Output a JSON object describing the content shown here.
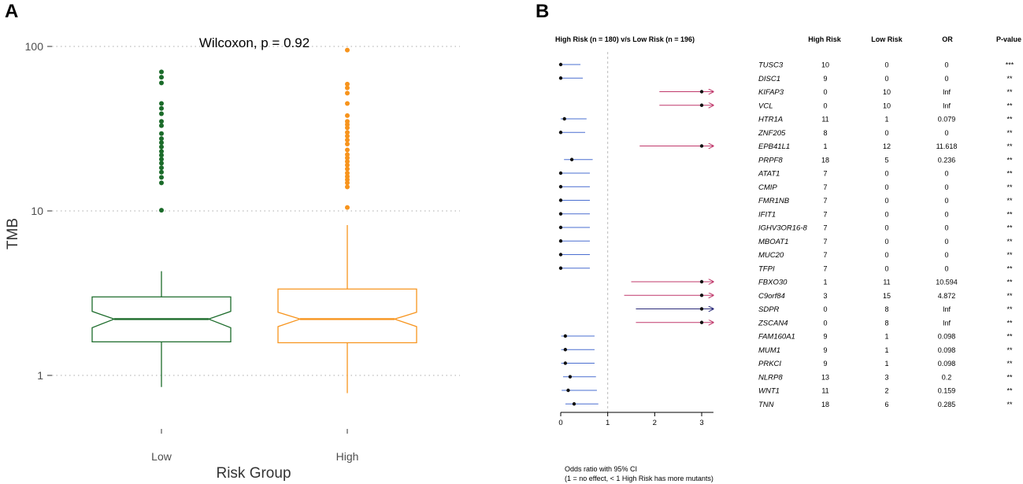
{
  "chart_data": [
    {
      "panel": "A",
      "type": "boxplot",
      "title": "Wilcoxon, p = 0.92",
      "xlabel": "Risk Group",
      "ylabel": "TMB",
      "yscale": "log10",
      "ylim": [
        0.7,
        110
      ],
      "yticks": [
        1,
        10,
        100
      ],
      "ytick_labels": [
        "1",
        "10",
        "100"
      ],
      "categories": [
        "Low",
        "High"
      ],
      "colors": [
        "#1b6b2a",
        "#f7941d"
      ],
      "boxes": [
        {
          "name": "Low",
          "lower_whisker": 0.85,
          "q1": 1.6,
          "median": 2.2,
          "q3": 3.0,
          "upper_whisker": 4.3,
          "notch_low": 1.95,
          "notch_high": 2.45,
          "outliers": [
            10.1,
            14.8,
            16.0,
            17.2,
            18.3,
            19.5,
            20.6,
            21.8,
            23.0,
            24.5,
            26.0,
            27.5,
            29.5,
            33.0,
            35.0,
            39.0,
            42.0,
            45.0,
            60.0,
            65.0,
            70.0
          ]
        },
        {
          "name": "High",
          "lower_whisker": 0.78,
          "q1": 1.58,
          "median": 2.2,
          "q3": 3.35,
          "upper_whisker": 8.2,
          "notch_low": 1.98,
          "notch_high": 2.42,
          "outliers": [
            10.5,
            14.0,
            14.8,
            15.5,
            16.2,
            17.0,
            18.0,
            19.0,
            20.0,
            21.0,
            22.0,
            23.5,
            25.5,
            27.0,
            28.5,
            30.0,
            32.0,
            33.5,
            35.0,
            38.0,
            45.0,
            52.0,
            56.0,
            59.0,
            95.0
          ]
        }
      ]
    },
    {
      "panel": "B",
      "type": "forest",
      "title": "High Risk (n = 180) v/s Low Risk (n = 196)",
      "columns": [
        "High Risk",
        "Low Risk",
        "OR",
        "P-value"
      ],
      "xlim": [
        0,
        3
      ],
      "xticks": [
        0,
        1,
        2,
        3
      ],
      "ref_line": 1,
      "footnote_line1": "Odds ratio with 95% CI",
      "footnote_line2": "(1 = no effect, < 1 High Risk has more mutants)",
      "colors": {
        "low_ci": "#4a6fd0",
        "high_ci": "#c0396b",
        "dark_ci": "#2b2b7a",
        "point": "#111111",
        "ref": "#bbbbbb"
      },
      "rows": [
        {
          "gene": "TUSC3",
          "high": "10",
          "low": "0",
          "or": "0",
          "p": "***",
          "est": 0,
          "lo": 0,
          "hi": 0.42,
          "color": "low_ci",
          "arrow": false
        },
        {
          "gene": "DISC1",
          "high": "9",
          "low": "0",
          "or": "0",
          "p": "**",
          "est": 0,
          "lo": 0,
          "hi": 0.47,
          "color": "low_ci",
          "arrow": false
        },
        {
          "gene": "KIFAP3",
          "high": "0",
          "low": "10",
          "or": "Inf",
          "p": "**",
          "est": 3,
          "lo": 2.1,
          "hi": 3.25,
          "color": "high_ci",
          "arrow": true
        },
        {
          "gene": "VCL",
          "high": "0",
          "low": "10",
          "or": "Inf",
          "p": "**",
          "est": 3,
          "lo": 2.1,
          "hi": 3.25,
          "color": "high_ci",
          "arrow": true
        },
        {
          "gene": "HTR1A",
          "high": "11",
          "low": "1",
          "or": "0.079",
          "p": "**",
          "est": 0.079,
          "lo": 0.0,
          "hi": 0.55,
          "color": "low_ci",
          "arrow": false
        },
        {
          "gene": "ZNF205",
          "high": "8",
          "low": "0",
          "or": "0",
          "p": "**",
          "est": 0,
          "lo": 0,
          "hi": 0.52,
          "color": "low_ci",
          "arrow": false
        },
        {
          "gene": "EPB41L1",
          "high": "1",
          "low": "12",
          "or": "11.618",
          "p": "**",
          "est": 3,
          "lo": 1.68,
          "hi": 3.25,
          "color": "high_ci",
          "arrow": true
        },
        {
          "gene": "PRPF8",
          "high": "18",
          "low": "5",
          "or": "0.236",
          "p": "**",
          "est": 0.236,
          "lo": 0.07,
          "hi": 0.68,
          "color": "low_ci",
          "arrow": false
        },
        {
          "gene": "ATAT1",
          "high": "7",
          "low": "0",
          "or": "0",
          "p": "**",
          "est": 0,
          "lo": 0,
          "hi": 0.62,
          "color": "low_ci",
          "arrow": false
        },
        {
          "gene": "CMIP",
          "high": "7",
          "low": "0",
          "or": "0",
          "p": "**",
          "est": 0,
          "lo": 0,
          "hi": 0.62,
          "color": "low_ci",
          "arrow": false
        },
        {
          "gene": "FMR1NB",
          "high": "7",
          "low": "0",
          "or": "0",
          "p": "**",
          "est": 0,
          "lo": 0,
          "hi": 0.62,
          "color": "low_ci",
          "arrow": false
        },
        {
          "gene": "IFIT1",
          "high": "7",
          "low": "0",
          "or": "0",
          "p": "**",
          "est": 0,
          "lo": 0,
          "hi": 0.62,
          "color": "low_ci",
          "arrow": false
        },
        {
          "gene": "IGHV3OR16-8",
          "high": "7",
          "low": "0",
          "or": "0",
          "p": "**",
          "est": 0,
          "lo": 0,
          "hi": 0.62,
          "color": "low_ci",
          "arrow": false
        },
        {
          "gene": "MBOAT1",
          "high": "7",
          "low": "0",
          "or": "0",
          "p": "**",
          "est": 0,
          "lo": 0,
          "hi": 0.62,
          "color": "low_ci",
          "arrow": false
        },
        {
          "gene": "MUC20",
          "high": "7",
          "low": "0",
          "or": "0",
          "p": "**",
          "est": 0,
          "lo": 0,
          "hi": 0.62,
          "color": "low_ci",
          "arrow": false
        },
        {
          "gene": "TFPI",
          "high": "7",
          "low": "0",
          "or": "0",
          "p": "**",
          "est": 0,
          "lo": 0,
          "hi": 0.62,
          "color": "low_ci",
          "arrow": false
        },
        {
          "gene": "FBXO30",
          "high": "1",
          "low": "11",
          "or": "10.594",
          "p": "**",
          "est": 3,
          "lo": 1.5,
          "hi": 3.25,
          "color": "high_ci",
          "arrow": true
        },
        {
          "gene": "C9orf84",
          "high": "3",
          "low": "15",
          "or": "4.872",
          "p": "**",
          "est": 3,
          "lo": 1.35,
          "hi": 3.25,
          "color": "high_ci",
          "arrow": true
        },
        {
          "gene": "SDPR",
          "high": "0",
          "low": "8",
          "or": "Inf",
          "p": "**",
          "est": 3,
          "lo": 1.6,
          "hi": 3.25,
          "color": "dark_ci",
          "arrow": true
        },
        {
          "gene": "ZSCAN4",
          "high": "0",
          "low": "8",
          "or": "Inf",
          "p": "**",
          "est": 3,
          "lo": 1.6,
          "hi": 3.25,
          "color": "high_ci",
          "arrow": true
        },
        {
          "gene": "FAM160A1",
          "high": "9",
          "low": "1",
          "or": "0.098",
          "p": "**",
          "est": 0.098,
          "lo": 0.01,
          "hi": 0.72,
          "color": "low_ci",
          "arrow": false
        },
        {
          "gene": "MUM1",
          "high": "9",
          "low": "1",
          "or": "0.098",
          "p": "**",
          "est": 0.098,
          "lo": 0.01,
          "hi": 0.72,
          "color": "low_ci",
          "arrow": false
        },
        {
          "gene": "PRKCI",
          "high": "9",
          "low": "1",
          "or": "0.098",
          "p": "**",
          "est": 0.098,
          "lo": 0.01,
          "hi": 0.72,
          "color": "low_ci",
          "arrow": false
        },
        {
          "gene": "NLRP8",
          "high": "13",
          "low": "3",
          "or": "0.2",
          "p": "**",
          "est": 0.2,
          "lo": 0.05,
          "hi": 0.75,
          "color": "low_ci",
          "arrow": false
        },
        {
          "gene": "WNT1",
          "high": "11",
          "low": "2",
          "or": "0.159",
          "p": "**",
          "est": 0.159,
          "lo": 0.02,
          "hi": 0.77,
          "color": "low_ci",
          "arrow": false
        },
        {
          "gene": "TNN",
          "high": "18",
          "low": "6",
          "or": "0.285",
          "p": "**",
          "est": 0.285,
          "lo": 0.1,
          "hi": 0.8,
          "color": "low_ci",
          "arrow": false
        }
      ]
    }
  ],
  "labels": {
    "panel_a": "A",
    "panel_b": "B"
  }
}
